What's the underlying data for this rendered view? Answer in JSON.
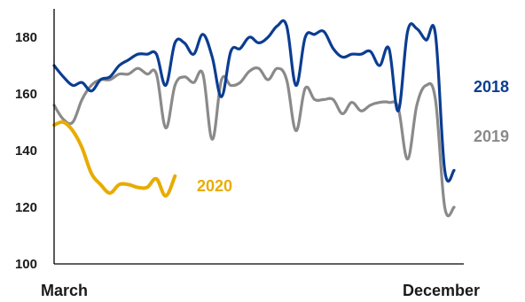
{
  "chart_data": {
    "type": "line",
    "title": "",
    "xlabel": "",
    "ylabel": "",
    "ylim": [
      100,
      190
    ],
    "yticks": [
      100,
      120,
      140,
      160,
      180
    ],
    "xlim": [
      0,
      43
    ],
    "x_tick_labels": [
      "March",
      "December"
    ],
    "grid": false,
    "legend": "inline labels at right end of each series",
    "series": [
      {
        "name": "2018",
        "color": "#0b3d91",
        "x": [
          0,
          1,
          2,
          3,
          4,
          5,
          6,
          7,
          8,
          9,
          10,
          11,
          12,
          13,
          14,
          15,
          16,
          17,
          18,
          19,
          20,
          21,
          22,
          23,
          24,
          25,
          26,
          27,
          28,
          29,
          30,
          31,
          32,
          33,
          34,
          35,
          36,
          37,
          38,
          39,
          40,
          41,
          42,
          43
        ],
        "values": [
          170,
          166,
          163,
          164,
          161,
          165,
          166,
          170,
          172,
          174,
          174,
          174,
          163,
          178,
          178,
          174,
          181,
          173,
          159,
          175,
          176,
          180,
          178,
          180,
          184,
          184,
          163,
          180,
          181,
          182,
          176,
          173,
          174,
          174,
          175,
          170,
          176,
          154,
          182,
          183,
          179,
          181,
          133,
          133
        ]
      },
      {
        "name": "2019",
        "color": "#8a8a8a",
        "x": [
          0,
          1,
          2,
          3,
          4,
          5,
          6,
          7,
          8,
          9,
          10,
          11,
          12,
          13,
          14,
          15,
          16,
          17,
          18,
          19,
          20,
          21,
          22,
          23,
          24,
          25,
          26,
          27,
          28,
          29,
          30,
          31,
          32,
          33,
          34,
          35,
          36,
          37,
          38,
          39,
          40,
          41,
          42,
          43
        ],
        "values": [
          156,
          151,
          150,
          158,
          163,
          165,
          165,
          167,
          167,
          169,
          167,
          167,
          148,
          163,
          166,
          164,
          167,
          144,
          165,
          163,
          164,
          168,
          169,
          165,
          169,
          165,
          147,
          162,
          158,
          158,
          158,
          153,
          157,
          154,
          156,
          157,
          157,
          155,
          137,
          156,
          163,
          158,
          120,
          120
        ]
      },
      {
        "name": "2020",
        "color": "#e8ac00",
        "x": [
          0,
          1,
          2,
          3,
          4,
          5,
          6,
          7,
          8,
          9,
          10,
          11,
          12,
          13
        ],
        "values": [
          149,
          150,
          147,
          141,
          132,
          128,
          125,
          128,
          128,
          127,
          127,
          130,
          124,
          131
        ]
      }
    ]
  }
}
